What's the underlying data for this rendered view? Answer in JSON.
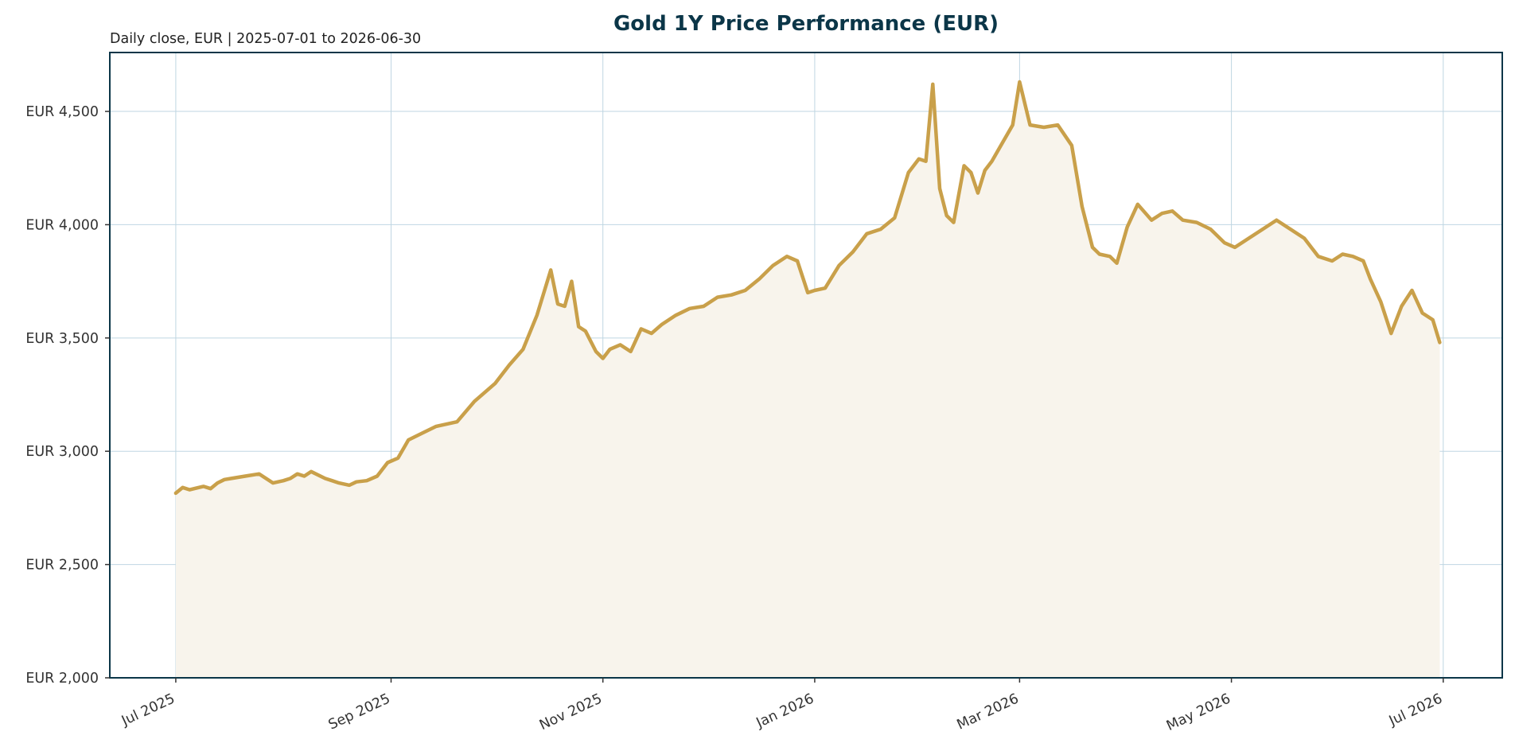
{
  "chart_data": {
    "type": "line",
    "title": "Gold 1Y Price Performance (EUR)",
    "subtitle": "Daily close, EUR | 2025-07-01 to 2026-06-30",
    "xlabel": "",
    "ylabel": "",
    "ylim": [
      2000,
      4760
    ],
    "xlim": [
      "2025-06-12",
      "2026-07-18"
    ],
    "grid": true,
    "legend": "none",
    "fill_under_line": true,
    "y_ticks": [
      2000,
      2500,
      3000,
      3500,
      4000,
      4500
    ],
    "y_tick_labels": [
      "EUR 2,000",
      "EUR 2,500",
      "EUR 3,000",
      "EUR 3,500",
      "EUR 4,000",
      "EUR 4,500"
    ],
    "x_ticks": [
      "2025-07-01",
      "2025-09-01",
      "2025-11-01",
      "2026-01-01",
      "2026-03-01",
      "2026-05-01",
      "2026-07-01"
    ],
    "x_tick_labels": [
      "Jul 2025",
      "Sep 2025",
      "Nov 2025",
      "Jan 2026",
      "Mar 2026",
      "May 2026",
      "Jul 2026"
    ],
    "colors": {
      "line": "#C9A04A",
      "fill": "#F8F4EC",
      "title": "#0B3648",
      "axes": "#0B3648",
      "grid": "#BFD6E2"
    },
    "series": [
      {
        "x": [
          "2025-07-01",
          "2025-07-03",
          "2025-07-05",
          "2025-07-07",
          "2025-07-09",
          "2025-07-11",
          "2025-07-13",
          "2025-07-15",
          "2025-07-17",
          "2025-07-21",
          "2025-07-25",
          "2025-07-29",
          "2025-08-01",
          "2025-08-03",
          "2025-08-05",
          "2025-08-07",
          "2025-08-09",
          "2025-08-13",
          "2025-08-15",
          "2025-08-17",
          "2025-08-20",
          "2025-08-22",
          "2025-08-25",
          "2025-08-28",
          "2025-08-31",
          "2025-09-03",
          "2025-09-06",
          "2025-09-10",
          "2025-09-14",
          "2025-09-20",
          "2025-09-25",
          "2025-10-01",
          "2025-10-05",
          "2025-10-09",
          "2025-10-13",
          "2025-10-15",
          "2025-10-17",
          "2025-10-19",
          "2025-10-21",
          "2025-10-23",
          "2025-10-25",
          "2025-10-27",
          "2025-10-30",
          "2025-11-01",
          "2025-11-03",
          "2025-11-06",
          "2025-11-09",
          "2025-11-12",
          "2025-11-15",
          "2025-11-18",
          "2025-11-22",
          "2025-11-26",
          "2025-11-30",
          "2025-12-04",
          "2025-12-08",
          "2025-12-12",
          "2025-12-16",
          "2025-12-20",
          "2025-12-24",
          "2025-12-27",
          "2025-12-30",
          "2026-01-01",
          "2026-01-04",
          "2026-01-08",
          "2026-01-12",
          "2026-01-16",
          "2026-01-20",
          "2026-01-24",
          "2026-01-28",
          "2026-01-31",
          "2026-02-02",
          "2026-02-04",
          "2026-02-06",
          "2026-02-08",
          "2026-02-10",
          "2026-02-13",
          "2026-02-15",
          "2026-02-17",
          "2026-02-19",
          "2026-02-21",
          "2026-02-24",
          "2026-02-27",
          "2026-03-01",
          "2026-03-04",
          "2026-03-08",
          "2026-03-12",
          "2026-03-16",
          "2026-03-19",
          "2026-03-22",
          "2026-03-24",
          "2026-03-27",
          "2026-03-29",
          "2026-04-01",
          "2026-04-04",
          "2026-04-08",
          "2026-04-11",
          "2026-04-14",
          "2026-04-17",
          "2026-04-21",
          "2026-04-25",
          "2026-04-29",
          "2026-05-02",
          "2026-05-06",
          "2026-05-10",
          "2026-05-14",
          "2026-05-18",
          "2026-05-22",
          "2026-05-26",
          "2026-05-30",
          "2026-06-02",
          "2026-06-05",
          "2026-06-08",
          "2026-06-10",
          "2026-06-13",
          "2026-06-16",
          "2026-06-19",
          "2026-06-22",
          "2026-06-25",
          "2026-06-28",
          "2026-06-30"
        ],
        "values": [
          2815,
          2840,
          2830,
          2838,
          2845,
          2835,
          2860,
          2875,
          2880,
          2890,
          2900,
          2860,
          2870,
          2880,
          2900,
          2890,
          2910,
          2880,
          2870,
          2860,
          2850,
          2865,
          2870,
          2890,
          2950,
          2970,
          3050,
          3080,
          3110,
          3130,
          3220,
          3300,
          3380,
          3450,
          3600,
          3700,
          3800,
          3650,
          3640,
          3750,
          3550,
          3530,
          3440,
          3410,
          3450,
          3470,
          3440,
          3540,
          3520,
          3560,
          3600,
          3630,
          3640,
          3680,
          3690,
          3710,
          3760,
          3820,
          3860,
          3840,
          3700,
          3710,
          3720,
          3820,
          3880,
          3960,
          3980,
          4030,
          4230,
          4290,
          4280,
          4620,
          4160,
          4040,
          4010,
          4260,
          4230,
          4140,
          4240,
          4280,
          4360,
          4440,
          4630,
          4440,
          4430,
          4440,
          4350,
          4080,
          3900,
          3870,
          3860,
          3830,
          3990,
          4090,
          4020,
          4050,
          4060,
          4020,
          4010,
          3980,
          3920,
          3900,
          3940,
          3980,
          4020,
          3980,
          3940,
          3860,
          3840,
          3870,
          3860,
          3840,
          3760,
          3660,
          3520,
          3640,
          3710,
          3610,
          3580,
          3480
        ]
      }
    ]
  }
}
